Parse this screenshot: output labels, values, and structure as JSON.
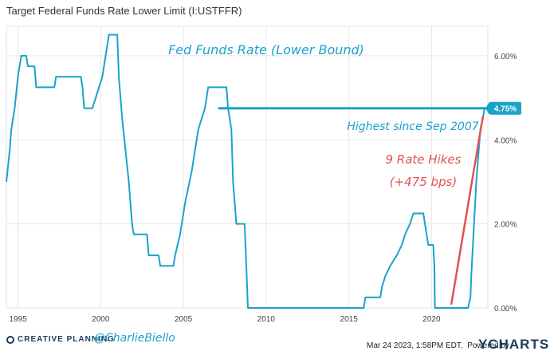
{
  "chart_data": {
    "type": "line",
    "title": "Target Federal Funds Rate Lower Limit (I:USTFFR)",
    "annotation_title": "Fed Funds Rate (Lower Bound)",
    "annotation_highest": "Highest since Sep 2007",
    "annotation_hikes_1": "9 Rate Hikes",
    "annotation_hikes_2": "(+475 bps)",
    "last_value_label": "4.75%",
    "x_ticks": [
      "1995",
      "2000",
      "2005",
      "2010",
      "2015",
      "2020"
    ],
    "y_ticks": [
      "0.00%",
      "2.00%",
      "4.00%",
      "6.00%"
    ],
    "xlim": [
      1994.3,
      2023.4
    ],
    "ylim": [
      0,
      6.0
    ],
    "grid": true,
    "line_color": "#1aa3c9",
    "hike_color": "#e05252",
    "series": [
      {
        "points": [
          [
            1994.3,
            3.0
          ],
          [
            1994.5,
            3.75
          ],
          [
            1994.6,
            4.25
          ],
          [
            1994.8,
            4.75
          ],
          [
            1995.0,
            5.5
          ],
          [
            1995.2,
            6.0
          ],
          [
            1995.5,
            6.0
          ],
          [
            1995.6,
            5.75
          ],
          [
            1996.0,
            5.75
          ],
          [
            1996.1,
            5.25
          ],
          [
            1997.2,
            5.25
          ],
          [
            1997.3,
            5.5
          ],
          [
            1998.8,
            5.5
          ],
          [
            1998.9,
            5.25
          ],
          [
            1999.0,
            4.75
          ],
          [
            1999.5,
            4.75
          ],
          [
            1999.7,
            5.0
          ],
          [
            1999.9,
            5.25
          ],
          [
            2000.1,
            5.5
          ],
          [
            2000.3,
            6.0
          ],
          [
            2000.5,
            6.5
          ],
          [
            2001.0,
            6.5
          ],
          [
            2001.1,
            5.5
          ],
          [
            2001.3,
            4.5
          ],
          [
            2001.5,
            3.75
          ],
          [
            2001.7,
            3.0
          ],
          [
            2001.9,
            2.0
          ],
          [
            2002.0,
            1.75
          ],
          [
            2002.8,
            1.75
          ],
          [
            2002.9,
            1.25
          ],
          [
            2003.5,
            1.25
          ],
          [
            2003.6,
            1.0
          ],
          [
            2004.4,
            1.0
          ],
          [
            2004.5,
            1.25
          ],
          [
            2004.8,
            1.75
          ],
          [
            2005.1,
            2.5
          ],
          [
            2005.5,
            3.25
          ],
          [
            2005.9,
            4.25
          ],
          [
            2006.3,
            4.75
          ],
          [
            2006.5,
            5.25
          ],
          [
            2007.6,
            5.25
          ],
          [
            2007.7,
            4.75
          ],
          [
            2007.9,
            4.25
          ],
          [
            2008.0,
            3.0
          ],
          [
            2008.2,
            2.0
          ],
          [
            2008.7,
            2.0
          ],
          [
            2008.8,
            1.0
          ],
          [
            2008.9,
            0.0
          ],
          [
            2015.9,
            0.0
          ],
          [
            2016.0,
            0.25
          ],
          [
            2016.9,
            0.25
          ],
          [
            2017.0,
            0.5
          ],
          [
            2017.2,
            0.75
          ],
          [
            2017.5,
            1.0
          ],
          [
            2017.9,
            1.25
          ],
          [
            2018.2,
            1.5
          ],
          [
            2018.4,
            1.75
          ],
          [
            2018.7,
            2.0
          ],
          [
            2018.9,
            2.25
          ],
          [
            2019.5,
            2.25
          ],
          [
            2019.6,
            2.0
          ],
          [
            2019.7,
            1.75
          ],
          [
            2019.8,
            1.5
          ],
          [
            2020.1,
            1.5
          ],
          [
            2020.17,
            1.0
          ],
          [
            2020.2,
            0.0
          ],
          [
            2022.2,
            0.0
          ],
          [
            2022.35,
            0.25
          ],
          [
            2022.4,
            0.75
          ],
          [
            2022.5,
            1.5
          ],
          [
            2022.6,
            2.25
          ],
          [
            2022.7,
            3.0
          ],
          [
            2022.85,
            3.75
          ],
          [
            2022.95,
            4.25
          ],
          [
            2023.1,
            4.5
          ],
          [
            2023.2,
            4.75
          ],
          [
            2023.3,
            4.75
          ]
        ]
      }
    ],
    "highest_level": 4.75,
    "highest_since": 2007.1,
    "hike_trend": {
      "x": [
        2021.2,
        2023.1
      ],
      "y": [
        0.1,
        4.55
      ]
    }
  },
  "footer": {
    "brand": "CREATIVE PLANNING",
    "handle": "@CharlieBiello",
    "timestamp": "Mar 24 2023, 1:58PM EDT.",
    "powered_by": "Powered by",
    "ycharts": "YCHARTS"
  }
}
